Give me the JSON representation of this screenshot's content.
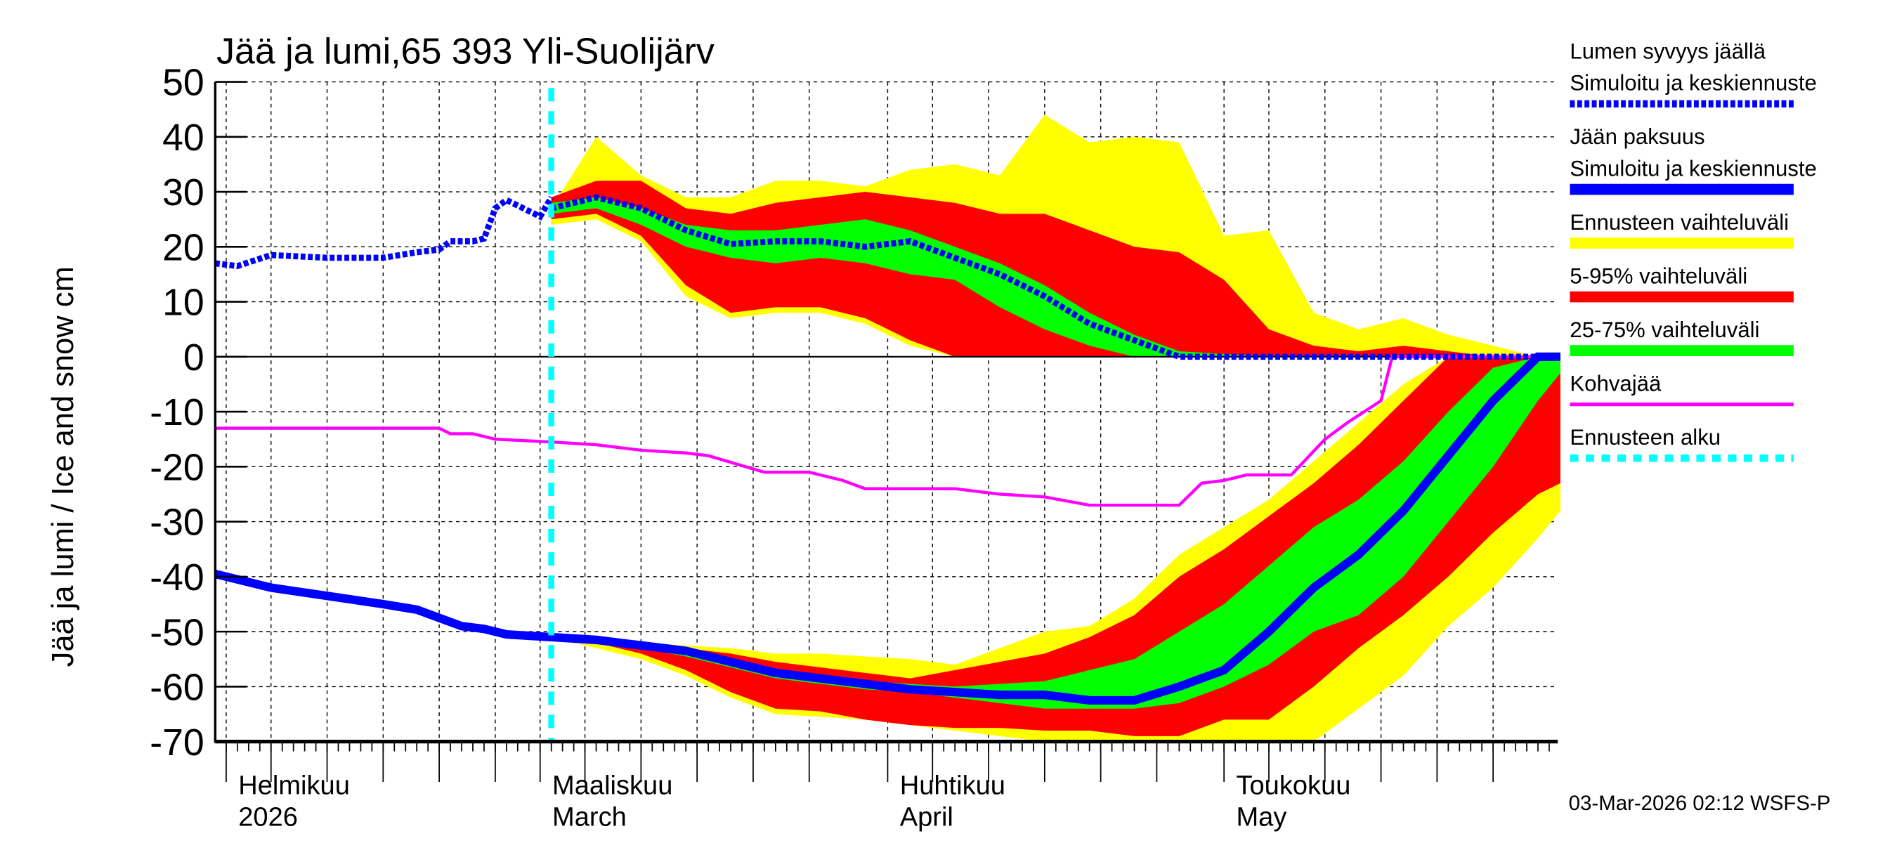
{
  "chart_data": {
    "type": "area",
    "title": "Jää ja lumi,65 393 Yli-Suolijärv",
    "ylabel": "Jää ja lumi / Ice and snow    cm",
    "ylim": [
      -70,
      50
    ],
    "yticks": [
      50,
      40,
      30,
      20,
      10,
      0,
      -10,
      -20,
      -30,
      -40,
      -50,
      -60,
      -70
    ],
    "xlim": [
      "2026-01-31",
      "2026-05-31"
    ],
    "grid": true,
    "legend_placement": "right",
    "month_labels": [
      {
        "date": "2026-02-01",
        "line1": "Helmikuu",
        "line2": "2026"
      },
      {
        "date": "2026-03-01",
        "line1": "Maaliskuu",
        "line2": "March"
      },
      {
        "date": "2026-04-01",
        "line1": "Huhtikuu",
        "line2": "April"
      },
      {
        "date": "2026-05-01",
        "line1": "Toukokuu",
        "line2": "May"
      }
    ],
    "forecast_start": "2026-03-02",
    "timestamp": "03-Mar-2026 02:12 WSFS-P",
    "colors": {
      "snow": "#0000ff",
      "ice": "#0000ff",
      "range": "#ffff00",
      "p5_95": "#ff0000",
      "p25_75": "#00ff00",
      "slush": "#ff00ff",
      "forecast_start": "#00ffff"
    },
    "legend": [
      {
        "line1": "Lumen syvyys jäällä",
        "line2": "Simuloitu ja keskiennuste",
        "style": "dotted-thick",
        "color": "#0000ff"
      },
      {
        "line1": "Jään paksuus",
        "line2": "Simuloitu ja keskiennuste",
        "style": "solid-thick",
        "color": "#0000ff"
      },
      {
        "line1": "Ennusteen vaihteluväli",
        "style": "band",
        "color": "#ffff00"
      },
      {
        "line1": "5-95% vaihteluväli",
        "style": "band",
        "color": "#ff0000"
      },
      {
        "line1": "25-75% vaihteluväli",
        "style": "band",
        "color": "#00ff00"
      },
      {
        "line1": "Kohvajää",
        "style": "line",
        "color": "#ff00ff"
      },
      {
        "line1": "Ennusteen alku",
        "style": "dashed",
        "color": "#00ffff"
      }
    ],
    "observed_snow": {
      "dates": [
        "2026-01-31",
        "2026-02-02",
        "2026-02-05",
        "2026-02-10",
        "2026-02-15",
        "2026-02-18",
        "2026-02-20",
        "2026-02-21",
        "2026-02-23",
        "2026-02-24",
        "2026-02-25",
        "2026-02-26",
        "2026-02-28",
        "2026-03-01",
        "2026-03-02"
      ],
      "values": [
        17,
        16.5,
        18.5,
        18,
        18,
        19,
        19.5,
        21,
        21,
        21.5,
        27,
        28.5,
        26.5,
        25.5,
        29
      ]
    },
    "observed_ice": {
      "dates": [
        "2026-01-31",
        "2026-02-05",
        "2026-02-10",
        "2026-02-15",
        "2026-02-18",
        "2026-02-20",
        "2026-02-22",
        "2026-02-24",
        "2026-02-26",
        "2026-03-02"
      ],
      "values": [
        -39.5,
        -42,
        -43.5,
        -45,
        -46,
        -47.5,
        -49,
        -49.5,
        -50.5,
        -51
      ]
    },
    "forecast_dates": [
      "2026-03-02",
      "2026-03-06",
      "2026-03-10",
      "2026-03-14",
      "2026-03-18",
      "2026-03-22",
      "2026-03-26",
      "2026-03-30",
      "2026-04-03",
      "2026-04-07",
      "2026-04-11",
      "2026-04-15",
      "2026-04-19",
      "2026-04-23",
      "2026-04-27",
      "2026-05-01",
      "2026-05-05",
      "2026-05-09",
      "2026-05-13",
      "2026-05-17",
      "2026-05-21",
      "2026-05-25",
      "2026-05-29",
      "2026-05-31"
    ],
    "snow_forecast": {
      "range_max": [
        27,
        40,
        33,
        29,
        29,
        32,
        32,
        31,
        34,
        35,
        33,
        44,
        39,
        40,
        39,
        22,
        23,
        8,
        5,
        7,
        4,
        2,
        0,
        0
      ],
      "p95": [
        29,
        32,
        32,
        27,
        26,
        28,
        29,
        30,
        29,
        28,
        26,
        26,
        23,
        20,
        19,
        14,
        5,
        2,
        1,
        2,
        1,
        0,
        0,
        0
      ],
      "p75": [
        28,
        29,
        27,
        24,
        23,
        23,
        24,
        25,
        23,
        20,
        17,
        13,
        8,
        4,
        1,
        0.5,
        0,
        0,
        0,
        0,
        0,
        0,
        0,
        0
      ],
      "median": [
        27,
        29,
        27,
        23,
        20.5,
        21,
        21,
        20,
        21,
        18,
        15,
        11,
        6,
        3,
        0,
        0,
        0,
        0,
        0,
        0,
        0,
        0,
        0,
        0
      ],
      "p25": [
        26,
        27,
        24,
        20,
        18,
        17,
        18,
        17,
        15,
        14,
        9,
        5,
        2,
        0,
        0,
        0,
        0,
        0,
        0,
        0,
        0,
        0,
        0,
        0
      ],
      "p5": [
        25,
        26,
        22,
        13,
        8,
        9,
        9,
        7,
        3,
        0,
        0,
        0,
        0,
        0,
        0,
        0,
        0,
        0,
        0,
        0,
        0,
        0,
        0,
        0
      ],
      "range_min": [
        24,
        25,
        21,
        11,
        7,
        8,
        8,
        6,
        2,
        0,
        0,
        0,
        0,
        0,
        0,
        0,
        0,
        0,
        0,
        0,
        0,
        0,
        0,
        0
      ]
    },
    "ice_forecast": {
      "range_max": [
        -51,
        -51,
        -52,
        -52.5,
        -53,
        -54,
        -54,
        -54.5,
        -55,
        -56,
        -53,
        -50,
        -49,
        -44,
        -36,
        -31,
        -26,
        -19,
        -12,
        -5,
        0,
        0,
        0,
        0
      ],
      "p95": [
        -51,
        -51.5,
        -52,
        -53,
        -54,
        -55.5,
        -56.5,
        -57.5,
        -58.5,
        -57,
        -55.5,
        -54,
        -51,
        -47,
        -40,
        -35,
        -29,
        -23,
        -16,
        -8,
        0,
        0,
        0,
        0
      ],
      "p75": [
        -51,
        -51.5,
        -52.5,
        -53.5,
        -55,
        -57,
        -58,
        -59,
        -59.5,
        -60,
        -59.5,
        -59,
        -57,
        -55,
        -50,
        -45,
        -38,
        -31,
        -26,
        -19,
        -10,
        -2,
        0,
        0
      ],
      "median": [
        -51,
        -51.5,
        -52.5,
        -53.5,
        -55.5,
        -57.5,
        -58.5,
        -59.5,
        -60.5,
        -61,
        -61.5,
        -61.5,
        -62.5,
        -62.5,
        -60,
        -57,
        -50,
        -42,
        -36,
        -28,
        -18,
        -8,
        0,
        0
      ],
      "p25": [
        -51,
        -52,
        -53,
        -54.5,
        -56.5,
        -58.5,
        -59.5,
        -60.5,
        -61,
        -62,
        -63,
        -64,
        -64,
        -64,
        -63,
        -60,
        -56,
        -50,
        -47,
        -40,
        -30,
        -20,
        -8,
        -3
      ],
      "p5": [
        -51,
        -52,
        -54,
        -57,
        -61,
        -64,
        -64.5,
        -66,
        -67,
        -67.5,
        -67.5,
        -68,
        -68,
        -69,
        -69,
        -66,
        -66,
        -60,
        -53,
        -47,
        -40,
        -32,
        -25,
        -23
      ],
      "range_min": [
        -51,
        -53,
        -55,
        -58,
        -62,
        -65,
        -65.5,
        -66,
        -67,
        -68,
        -69,
        -70,
        -70,
        -70,
        -70,
        -70,
        -70,
        -70,
        -64,
        -58,
        -49,
        -42,
        -33,
        -28
      ]
    },
    "slush_ice": {
      "dates": [
        "2026-01-31",
        "2026-02-20",
        "2026-02-21",
        "2026-02-23",
        "2026-02-25",
        "2026-03-02",
        "2026-03-06",
        "2026-03-10",
        "2026-03-14",
        "2026-03-16",
        "2026-03-21",
        "2026-03-25",
        "2026-03-28",
        "2026-03-30",
        "2026-04-07",
        "2026-04-11",
        "2026-04-15",
        "2026-04-19",
        "2026-04-27",
        "2026-04-29",
        "2026-05-01",
        "2026-05-03",
        "2026-05-07",
        "2026-05-10",
        "2026-05-12",
        "2026-05-15",
        "2026-05-16",
        "2026-05-31"
      ],
      "values": [
        -13,
        -13,
        -14,
        -14,
        -15,
        -15.5,
        -16,
        -17,
        -17.5,
        -18,
        -21,
        -21,
        -22.5,
        -24,
        -24,
        -25,
        -25.5,
        -27,
        -27,
        -23,
        -22.5,
        -21.5,
        -21.5,
        -15,
        -12,
        -8,
        0,
        0
      ]
    }
  }
}
